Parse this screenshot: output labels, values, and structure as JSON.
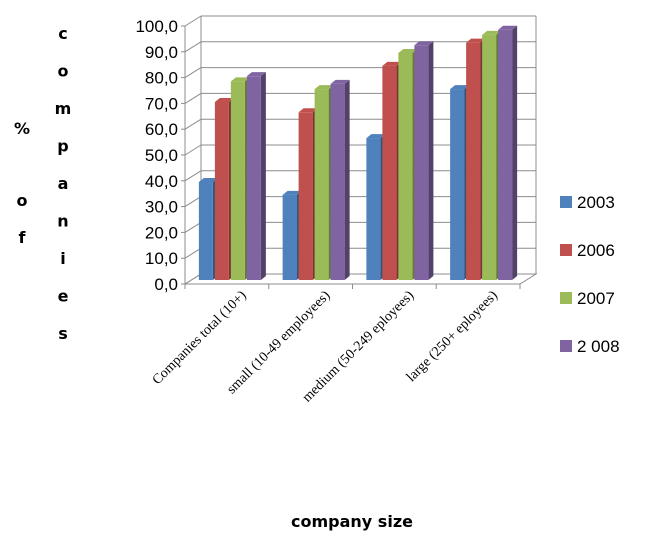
{
  "chart_data": {
    "type": "bar",
    "title": "",
    "xlabel": "company size",
    "ylabel": "% of companies",
    "ylabel_chars": [
      "%",
      "o",
      "f",
      "c",
      "o",
      "m",
      "p",
      "a",
      "n",
      "i",
      "e",
      "s"
    ],
    "ylim": [
      0,
      100
    ],
    "yticks": [
      "0,0",
      "10,0",
      "20,0",
      "30,0",
      "40,0",
      "50,0",
      "60,0",
      "70,0",
      "80,0",
      "90,0",
      "100,0"
    ],
    "categories": [
      "Companies total (10+)",
      "small (10-49 employees)",
      "medium (50-249 eployees)",
      "large (250+ eployees)"
    ],
    "series": [
      {
        "name": "2003",
        "values": [
          38,
          33,
          55,
          74
        ],
        "color": "#4F81BD"
      },
      {
        "name": "2006",
        "values": [
          69,
          65,
          83,
          92
        ],
        "color": "#C0504D"
      },
      {
        "name": "2007",
        "values": [
          77,
          74,
          88,
          95
        ],
        "color": "#9BBB59"
      },
      {
        "name": "2 008",
        "values": [
          79,
          76,
          91,
          97
        ],
        "color": "#8064A2"
      }
    ],
    "legend_position": "right",
    "grid": true,
    "style": "3d-clustered-column"
  }
}
